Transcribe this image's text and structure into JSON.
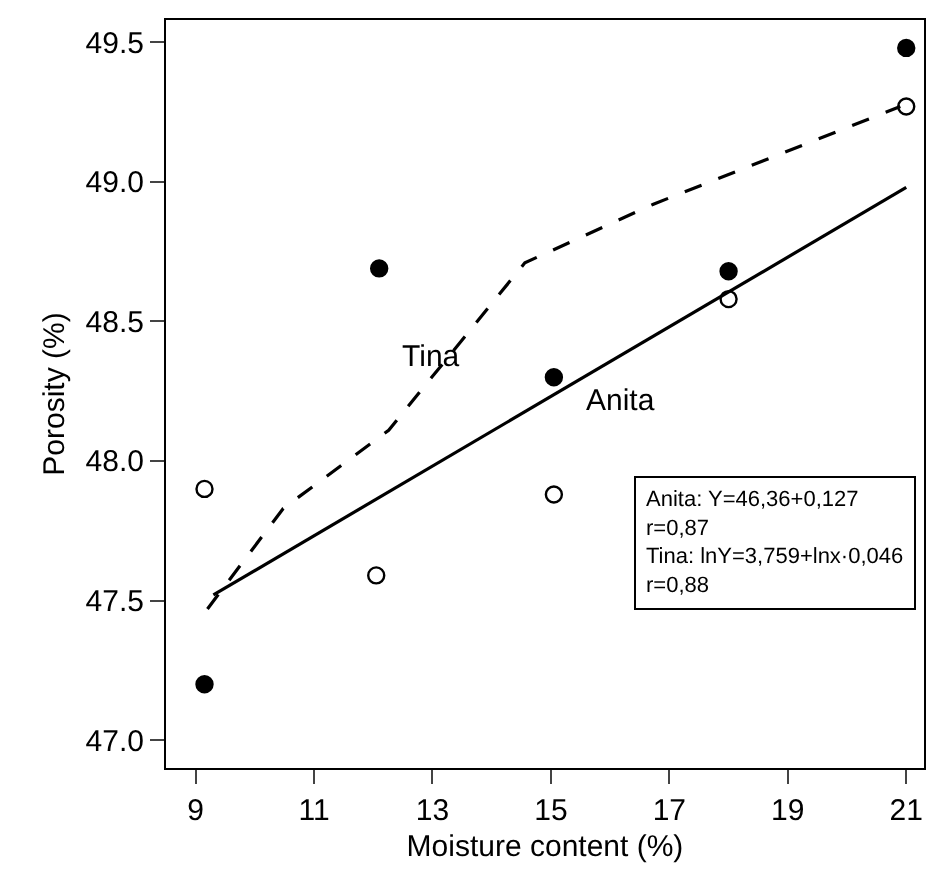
{
  "chart_data": {
    "type": "scatter",
    "xlabel": "Moisture content (%)",
    "ylabel": "Porosity (%)",
    "xlim": [
      8.5,
      21.3
    ],
    "ylim": [
      46.9,
      49.58
    ],
    "xticks": [
      9,
      11,
      13,
      15,
      17,
      19,
      21
    ],
    "yticks": [
      {
        "value": 47,
        "label": "47.0"
      },
      {
        "value": 47.5,
        "label": "47.5"
      },
      {
        "value": 48,
        "label": "48.0"
      },
      {
        "value": 48.5,
        "label": "48.5"
      },
      {
        "value": 49,
        "label": "49.0"
      },
      {
        "value": 49.5,
        "label": "49.5"
      }
    ],
    "legend": false,
    "series": [
      {
        "marker": "circle",
        "color": "#000000",
        "x": [
          9.15,
          12.1,
          15.05,
          18,
          21
        ],
        "values": [
          47.2,
          48.69,
          48.3,
          48.68,
          49.48
        ]
      },
      {
        "marker": "circle-open",
        "color": "#000000",
        "x": [
          9.15,
          12.05,
          15.05,
          18,
          21
        ],
        "values": [
          47.9,
          47.59,
          47.88,
          48.58,
          49.27
        ]
      },
      {
        "type": "line",
        "line_style": "solid",
        "color": "#000000",
        "x": [
          9.3,
          21
        ],
        "values": [
          47.52,
          48.98
        ]
      },
      {
        "type": "line",
        "line_style": "dashed",
        "color": "#000000",
        "x": [
          9.2,
          10.48,
          12.26,
          14.56,
          16.73,
          20.9
        ],
        "values": [
          47.47,
          47.83,
          48.11,
          48.71,
          48.92,
          49.27
        ]
      }
    ],
    "annotations": [
      "Tina",
      "Anita",
      "Anita: Y=46,36+0,127\nr=0,87\nTina: lnY=3,759+lnx·0,046\nr=0,88"
    ]
  }
}
